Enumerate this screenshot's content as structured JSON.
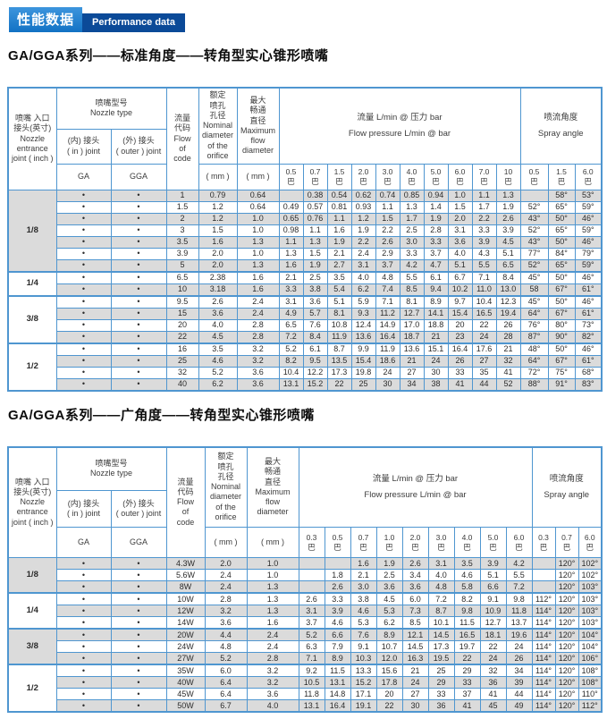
{
  "badge": {
    "zh": "性能数据",
    "en": "Performance data"
  },
  "table_header": {
    "joint": "喷嘴 入口\n接头(英寸)\nNozzle\nentrance\njoint ( inch )",
    "nozzle_type": "喷嘴型号\nNozzle type",
    "in_joint": "(内) 接头\n( in ) joint",
    "out_joint": "(外) 接头\n( outer ) joint",
    "ga": "GA",
    "gga": "GGA",
    "flow_code": "流量\n代码\nFlow\nof\ncode",
    "nominal": "额定\n喷孔\n孔径\nNominal\ndiameter\nof the\norifice",
    "max": "最大\n畅通\n直径\nMaximum\nflow\ndiameter",
    "mm": "( mm )",
    "flow_group": "流量 L/min @ 压力 bar\nFlow pressure L/min @ bar",
    "spray_group": "喷流角度\nSpray angle",
    "bar": "巴",
    "dot": "•"
  },
  "sections": [
    {
      "title": "GA/GGA系列——标准角度——转角型实心锥形喷嘴",
      "pressures": [
        "0.5",
        "0.7",
        "1.5",
        "2.0",
        "3.0",
        "4.0",
        "5.0",
        "6.0",
        "7.0",
        "10"
      ],
      "angle_pressures": [
        "0.5",
        "1.5",
        "6.0"
      ],
      "groups": [
        {
          "joint": "1/8",
          "rows": [
            {
              "code": "1",
              "nominal": "0.79",
              "max": "0.64",
              "flows": [
                "",
                "0.38",
                "0.54",
                "0.62",
                "0.74",
                "0.85",
                "0.94",
                "1.0",
                "1.1",
                "1.3"
              ],
              "angles": [
                "",
                "58°",
                "53°"
              ]
            },
            {
              "code": "1.5",
              "nominal": "1.2",
              "max": "0.64",
              "flows": [
                "0.49",
                "0.57",
                "0.81",
                "0.93",
                "1.1",
                "1.3",
                "1.4",
                "1.5",
                "1.7",
                "1.9"
              ],
              "angles": [
                "52°",
                "65°",
                "59°"
              ]
            },
            {
              "code": "2",
              "nominal": "1.2",
              "max": "1.0",
              "flows": [
                "0.65",
                "0.76",
                "1.1",
                "1.2",
                "1.5",
                "1.7",
                "1.9",
                "2.0",
                "2.2",
                "2.6"
              ],
              "angles": [
                "43°",
                "50°",
                "46°"
              ]
            },
            {
              "code": "3",
              "nominal": "1.5",
              "max": "1.0",
              "flows": [
                "0.98",
                "1.1",
                "1.6",
                "1.9",
                "2.2",
                "2.5",
                "2.8",
                "3.1",
                "3.3",
                "3.9"
              ],
              "angles": [
                "52°",
                "65°",
                "59°"
              ]
            },
            {
              "code": "3.5",
              "nominal": "1.6",
              "max": "1.3",
              "flows": [
                "1.1",
                "1.3",
                "1.9",
                "2.2",
                "2.6",
                "3.0",
                "3.3",
                "3.6",
                "3.9",
                "4.5"
              ],
              "angles": [
                "43°",
                "50°",
                "46°"
              ]
            },
            {
              "code": "3.9",
              "nominal": "2.0",
              "max": "1.0",
              "flows": [
                "1.3",
                "1.5",
                "2.1",
                "2.4",
                "2.9",
                "3.3",
                "3.7",
                "4.0",
                "4.3",
                "5.1"
              ],
              "angles": [
                "77°",
                "84°",
                "79°"
              ]
            },
            {
              "code": "5",
              "nominal": "2.0",
              "max": "1.3",
              "flows": [
                "1.6",
                "1.9",
                "2.7",
                "3.1",
                "3.7",
                "4.2",
                "4.7",
                "5.1",
                "5.5",
                "6.5"
              ],
              "angles": [
                "52°",
                "65°",
                "59°"
              ]
            }
          ]
        },
        {
          "joint": "1/4",
          "rows": [
            {
              "code": "6.5",
              "nominal": "2.38",
              "max": "1.6",
              "flows": [
                "2.1",
                "2.5",
                "3.5",
                "4.0",
                "4.8",
                "5.5",
                "6.1",
                "6.7",
                "7.1",
                "8.4"
              ],
              "angles": [
                "45°",
                "50°",
                "46°"
              ]
            },
            {
              "code": "10",
              "nominal": "3.18",
              "max": "1.6",
              "flows": [
                "3.3",
                "3.8",
                "5.4",
                "6.2",
                "7.4",
                "8.5",
                "9.4",
                "10.2",
                "11.0",
                "13.0"
              ],
              "angles": [
                "58",
                "67°",
                "61°"
              ]
            }
          ]
        },
        {
          "joint": "3/8",
          "rows": [
            {
              "code": "9.5",
              "nominal": "2.6",
              "max": "2.4",
              "flows": [
                "3.1",
                "3.6",
                "5.1",
                "5.9",
                "7.1",
                "8.1",
                "8.9",
                "9.7",
                "10.4",
                "12.3"
              ],
              "angles": [
                "45°",
                "50°",
                "46°"
              ]
            },
            {
              "code": "15",
              "nominal": "3.6",
              "max": "2.4",
              "flows": [
                "4.9",
                "5.7",
                "8.1",
                "9.3",
                "11.2",
                "12.7",
                "14.1",
                "15.4",
                "16.5",
                "19.4"
              ],
              "angles": [
                "64°",
                "67°",
                "61°"
              ]
            },
            {
              "code": "20",
              "nominal": "4.0",
              "max": "2.8",
              "flows": [
                "6.5",
                "7.6",
                "10.8",
                "12.4",
                "14.9",
                "17.0",
                "18.8",
                "20",
                "22",
                "26"
              ],
              "angles": [
                "76°",
                "80°",
                "73°"
              ]
            },
            {
              "code": "22",
              "nominal": "4.5",
              "max": "2.8",
              "flows": [
                "7.2",
                "8.4",
                "11.9",
                "13.6",
                "16.4",
                "18.7",
                "21",
                "23",
                "24",
                "28"
              ],
              "angles": [
                "87°",
                "90°",
                "82°"
              ]
            }
          ]
        },
        {
          "joint": "1/2",
          "rows": [
            {
              "code": "16",
              "nominal": "3.5",
              "max": "3.2",
              "flows": [
                "5.2",
                "6.1",
                "8.7",
                "9.9",
                "11.9",
                "13.6",
                "15.1",
                "16.4",
                "17.6",
                "21"
              ],
              "angles": [
                "48°",
                "50°",
                "46°"
              ]
            },
            {
              "code": "25",
              "nominal": "4.6",
              "max": "3.2",
              "flows": [
                "8.2",
                "9.5",
                "13.5",
                "15.4",
                "18.6",
                "21",
                "24",
                "26",
                "27",
                "32"
              ],
              "angles": [
                "64°",
                "67°",
                "61°"
              ]
            },
            {
              "code": "32",
              "nominal": "5.2",
              "max": "3.6",
              "flows": [
                "10.4",
                "12.2",
                "17.3",
                "19.8",
                "24",
                "27",
                "30",
                "33",
                "35",
                "41"
              ],
              "angles": [
                "72°",
                "75°",
                "68°"
              ]
            },
            {
              "code": "40",
              "nominal": "6.2",
              "max": "3.6",
              "flows": [
                "13.1",
                "15.2",
                "22",
                "25",
                "30",
                "34",
                "38",
                "41",
                "44",
                "52"
              ],
              "angles": [
                "88°",
                "91°",
                "83°"
              ]
            }
          ]
        }
      ]
    },
    {
      "title": "GA/GGA系列——广角度——转角型实心锥形喷嘴",
      "pressures": [
        "0.3",
        "0.5",
        "0.7",
        "1.0",
        "2.0",
        "3.0",
        "4.0",
        "5.0",
        "6.0"
      ],
      "angle_pressures": [
        "0.3",
        "0.7",
        "6.0"
      ],
      "groups": [
        {
          "joint": "1/8",
          "rows": [
            {
              "code": "4.3W",
              "nominal": "2.0",
              "max": "1.0",
              "flows": [
                "",
                "",
                "1.6",
                "1.9",
                "2.6",
                "3.1",
                "3.5",
                "3.9",
                "4.2"
              ],
              "angles": [
                "",
                "120°",
                "102°"
              ]
            },
            {
              "code": "5.6W",
              "nominal": "2.4",
              "max": "1.0",
              "flows": [
                "",
                "1.8",
                "2.1",
                "2.5",
                "3.4",
                "4.0",
                "4.6",
                "5.1",
                "5.5"
              ],
              "angles": [
                "",
                "120°",
                "102°"
              ]
            },
            {
              "code": "8W",
              "nominal": "2.4",
              "max": "1.3",
              "flows": [
                "",
                "2.6",
                "3.0",
                "3.6",
                "3.6",
                "4.8",
                "5.8",
                "6.6",
                "7.2"
              ],
              "angles": [
                "",
                "120°",
                "103°"
              ]
            }
          ]
        },
        {
          "joint": "1/4",
          "rows": [
            {
              "code": "10W",
              "nominal": "2.8",
              "max": "1.3",
              "flows": [
                "2.6",
                "3.3",
                "3.8",
                "4.5",
                "6.0",
                "7.2",
                "8.2",
                "9.1",
                "9.8"
              ],
              "angles": [
                "112°",
                "120°",
                "103°"
              ]
            },
            {
              "code": "12W",
              "nominal": "3.2",
              "max": "1.3",
              "flows": [
                "3.1",
                "3.9",
                "4.6",
                "5.3",
                "7.3",
                "8.7",
                "9.8",
                "10.9",
                "11.8"
              ],
              "angles": [
                "114°",
                "120°",
                "103°"
              ]
            },
            {
              "code": "14W",
              "nominal": "3.6",
              "max": "1.6",
              "flows": [
                "3.7",
                "4.6",
                "5.3",
                "6.2",
                "8.5",
                "10.1",
                "11.5",
                "12.7",
                "13.7"
              ],
              "angles": [
                "114°",
                "120°",
                "103°"
              ]
            }
          ]
        },
        {
          "joint": "3/8",
          "rows": [
            {
              "code": "20W",
              "nominal": "4.4",
              "max": "2.4",
              "flows": [
                "5.2",
                "6.6",
                "7.6",
                "8.9",
                "12.1",
                "14.5",
                "16.5",
                "18.1",
                "19.6"
              ],
              "angles": [
                "114°",
                "120°",
                "104°"
              ]
            },
            {
              "code": "24W",
              "nominal": "4.8",
              "max": "2.4",
              "flows": [
                "6.3",
                "7.9",
                "9.1",
                "10.7",
                "14.5",
                "17.3",
                "19.7",
                "22",
                "24"
              ],
              "angles": [
                "114°",
                "120°",
                "104°"
              ]
            },
            {
              "code": "27W",
              "nominal": "5.2",
              "max": "2.8",
              "flows": [
                "7.1",
                "8.9",
                "10.3",
                "12.0",
                "16.3",
                "19.5",
                "22",
                "24",
                "26"
              ],
              "angles": [
                "114°",
                "120°",
                "106°"
              ]
            }
          ]
        },
        {
          "joint": "1/2",
          "rows": [
            {
              "code": "35W",
              "nominal": "6.0",
              "max": "3.2",
              "flows": [
                "9.2",
                "11.5",
                "13.3",
                "15.6",
                "21",
                "25",
                "29",
                "32",
                "34"
              ],
              "angles": [
                "114°",
                "120°",
                "108°"
              ]
            },
            {
              "code": "40W",
              "nominal": "6.4",
              "max": "3.2",
              "flows": [
                "10.5",
                "13.1",
                "15.2",
                "17.8",
                "24",
                "29",
                "33",
                "36",
                "39"
              ],
              "angles": [
                "114°",
                "120°",
                "108°"
              ]
            },
            {
              "code": "45W",
              "nominal": "6.4",
              "max": "3.6",
              "flows": [
                "11.8",
                "14.8",
                "17.1",
                "20",
                "27",
                "33",
                "37",
                "41",
                "44"
              ],
              "angles": [
                "114°",
                "120°",
                "110°"
              ]
            },
            {
              "code": "50W",
              "nominal": "6.7",
              "max": "4.0",
              "flows": [
                "13.1",
                "16.4",
                "19.1",
                "22",
                "30",
                "36",
                "41",
                "45",
                "49"
              ],
              "angles": [
                "114°",
                "120°",
                "112°"
              ]
            }
          ]
        }
      ]
    }
  ],
  "colors": {
    "border_blue": "#4f96d0",
    "badge_blue": "#1272c4",
    "badge_dark_blue": "#0b4a98",
    "stripe_gray": "#dbdbdb"
  }
}
